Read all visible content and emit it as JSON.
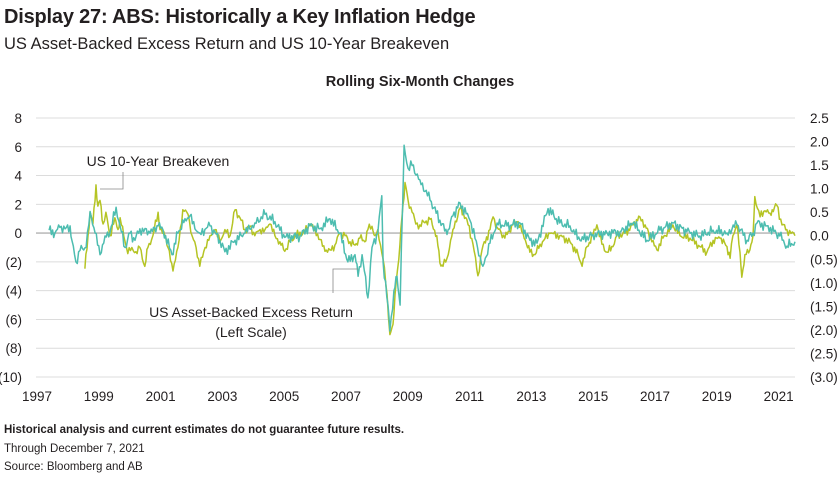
{
  "header": {
    "title": "Display 27: ABS: Historically a Key Inflation Hedge",
    "subtitle": "US Asset-Backed Excess Return and US 10-Year Breakeven"
  },
  "footer": {
    "disclaimer": "Historical analysis and current estimates do not guarantee future results.",
    "through": "Through December 7, 2021",
    "source": "Source: Bloomberg and  AB"
  },
  "chart_data": {
    "type": "line",
    "title": "Rolling Six-Month Changes",
    "xlim": [
      1997,
      2021.9
    ],
    "x_ticks": [
      "1997",
      "1999",
      "2001",
      "2003",
      "2005",
      "2007",
      "2009",
      "2011",
      "2013",
      "2015",
      "2017",
      "2019",
      "2021"
    ],
    "y_left": {
      "ylim": [
        -10,
        8
      ],
      "ticks": [
        "8",
        "6",
        "4",
        "2",
        "0",
        "(2)",
        "(4)",
        "(6)",
        "(8)",
        "(10)"
      ]
    },
    "y_right": {
      "ylim": [
        -3.0,
        2.5
      ],
      "ticks": [
        "2.5",
        "2.0",
        "1.5",
        "1.0",
        "0.5",
        "0.0",
        "(0.5)",
        "(1.0)",
        "(1.5)",
        "(2.0)",
        "(2.5)",
        "(3.0)"
      ]
    },
    "grid": true,
    "annotations": {
      "breakeven": "US 10-Year Breakeven",
      "abs_line1": "US Asset-Backed Excess Return",
      "abs_line2": "(Left Scale)"
    },
    "series": [
      {
        "name": "US Asset-Backed Excess Return",
        "axis": "left",
        "color": "#4dbdb0",
        "x": [
          1997.39,
          1997.58,
          1997.74,
          1997.91,
          1998.07,
          1998.13,
          1998.26,
          1998.39,
          1998.59,
          1998.72,
          1998.88,
          1999.04,
          1999.2,
          1999.36,
          1999.56,
          1999.69,
          1999.85,
          2000.01,
          2000.17,
          2000.33,
          2000.66,
          2000.92,
          2001.08,
          2001.37,
          2001.56,
          2001.79,
          2001.95,
          2002.11,
          2002.27,
          2002.6,
          2002.92,
          2003.08,
          2003.41,
          2003.73,
          2004.05,
          2004.38,
          2004.7,
          2005.02,
          2005.51,
          2005.83,
          2006.16,
          2006.48,
          2006.8,
          2007.06,
          2007.29,
          2007.39,
          2007.52,
          2007.71,
          2007.84,
          2008.03,
          2008.16,
          2008.2,
          2008.36,
          2008.42,
          2008.55,
          2008.65,
          2008.75,
          2008.88,
          2009.01,
          2009.14,
          2009.39,
          2009.72,
          2010.04,
          2010.27,
          2010.46,
          2010.69,
          2011.01,
          2011.34,
          2011.43,
          2011.66,
          2011.89,
          2012.21,
          2012.63,
          2012.95,
          2013.18,
          2013.54,
          2013.92,
          2014.25,
          2014.57,
          2014.99,
          2015.45,
          2015.87,
          2016.29,
          2016.74,
          2017.16,
          2017.58,
          2018.03,
          2018.45,
          2018.88,
          2019.33,
          2019.65,
          2019.98,
          2020.17,
          2020.3,
          2020.62,
          2021.04,
          2021.27,
          2021.53
        ],
        "y": [
          0.2,
          0,
          0.4,
          0.3,
          0.5,
          -0.5,
          -2,
          -1.2,
          -1,
          1.5,
          0,
          -1.5,
          -0.2,
          0,
          1.8,
          0.5,
          -1,
          0,
          -0.5,
          0.3,
          0,
          0.5,
          0.2,
          -1.5,
          0,
          1.0,
          1.2,
          0.3,
          0,
          0.5,
          -0.5,
          -1.3,
          -0.5,
          0,
          0.7,
          1.3,
          0.8,
          -0.3,
          -0.2,
          0.5,
          0.3,
          1.0,
          0,
          -2,
          -1.5,
          -3,
          -1.5,
          -4.5,
          -1,
          0,
          2.6,
          -2,
          -5,
          -6.8,
          -4,
          -3,
          -5,
          6.1,
          4.5,
          4.7,
          3.7,
          2.3,
          0.9,
          -0.1,
          1.2,
          2.1,
          0.9,
          -1.6,
          -2.3,
          -0.7,
          0.7,
          0.5,
          0.7,
          -0.5,
          -0.7,
          1.7,
          0.7,
          0.5,
          -0.5,
          -0.1,
          0,
          0.1,
          0.7,
          -0.5,
          0.2,
          0.7,
          0.1,
          -0.2,
          0.2,
          0,
          0.6,
          -0.5,
          0,
          0.7,
          0.5,
          -0.2,
          -0.9,
          -0.6
        ]
      },
      {
        "name": "US 10-Year Breakeven",
        "axis": "right",
        "color": "#b5c424",
        "x": [
          1998.55,
          1998.65,
          1998.72,
          1998.81,
          1998.91,
          1998.97,
          1999.04,
          1999.14,
          1999.23,
          1999.36,
          1999.52,
          1999.62,
          1999.69,
          1999.85,
          1999.94,
          2000.07,
          2000.24,
          2000.33,
          2000.49,
          2000.59,
          2000.75,
          2000.92,
          2000.98,
          2001.14,
          2001.24,
          2001.4,
          2001.56,
          2001.72,
          2001.89,
          2002.02,
          2002.15,
          2002.27,
          2002.44,
          2002.6,
          2002.76,
          2002.92,
          2003.08,
          2003.25,
          2003.41,
          2003.57,
          2003.73,
          2003.89,
          2004.05,
          2004.22,
          2004.38,
          2004.54,
          2004.7,
          2004.86,
          2005.02,
          2005.19,
          2005.35,
          2005.67,
          2005.83,
          2006.0,
          2006.16,
          2006.32,
          2006.48,
          2006.64,
          2006.8,
          2006.97,
          2007.13,
          2007.29,
          2007.45,
          2007.61,
          2007.71,
          2007.84,
          2007.94,
          2008.03,
          2008.2,
          2008.33,
          2008.42,
          2008.52,
          2008.62,
          2008.71,
          2008.81,
          2008.91,
          2009.01,
          2009.14,
          2009.26,
          2009.39,
          2009.72,
          2009.94,
          2010.04,
          2010.14,
          2010.27,
          2010.46,
          2010.69,
          2010.91,
          2011.11,
          2011.27,
          2011.4,
          2011.66,
          2011.76,
          2011.89,
          2012.14,
          2012.4,
          2012.57,
          2012.73,
          2012.95,
          2013.12,
          2013.28,
          2013.6,
          2013.92,
          2014.25,
          2014.51,
          2014.64,
          2014.8,
          2014.99,
          2015.12,
          2015.28,
          2015.45,
          2015.64,
          2015.77,
          2016.03,
          2016.29,
          2016.51,
          2016.68,
          2016.9,
          2017.06,
          2017.26,
          2017.58,
          2017.81,
          2018.13,
          2018.45,
          2018.68,
          2018.88,
          2019.1,
          2019.33,
          2019.43,
          2019.52,
          2019.65,
          2019.75,
          2019.81,
          2019.91,
          2020.07,
          2020.17,
          2020.23,
          2020.4,
          2020.56,
          2020.72,
          2020.94,
          2021.11,
          2021.27,
          2021.4,
          2021.53
        ],
        "y": [
          -0.7,
          0,
          0.5,
          0.25,
          1.08,
          0.63,
          0.75,
          0.25,
          0.5,
          0,
          0.38,
          0.13,
          0.38,
          -0.13,
          -0.38,
          -0.25,
          -0.38,
          -0.25,
          -0.65,
          -0.25,
          0,
          0.5,
          0.13,
          0,
          -0.25,
          -0.75,
          -0.25,
          0.55,
          0.45,
          0,
          -0.25,
          -0.65,
          -0.25,
          0,
          0.13,
          -0.13,
          0.13,
          0,
          0.55,
          0.38,
          0.13,
          0.2,
          0,
          0.13,
          0.13,
          0.25,
          0,
          -0.13,
          -0.33,
          -0.13,
          0,
          0.08,
          0.25,
          0.13,
          -0.08,
          -0.33,
          -0.3,
          -0.2,
          0.05,
          0,
          -0.13,
          -0.2,
          -0.05,
          -0.13,
          0.13,
          0.2,
          0,
          0.13,
          -0.5,
          -1.25,
          -2.1,
          -1.88,
          -1.0,
          -0.5,
          0.38,
          1.13,
          0.75,
          0.5,
          0.25,
          0.23,
          0.35,
          0,
          -0.58,
          -0.65,
          -0.48,
          0.13,
          0.58,
          0.35,
          -0.18,
          -0.85,
          -0.3,
          0.13,
          0.4,
          0.18,
          -0.05,
          0.23,
          0.3,
          0.05,
          -0.35,
          -0.4,
          -0.18,
          0.05,
          0,
          -0.13,
          -0.4,
          -0.65,
          -0.23,
          0,
          0.23,
          -0.18,
          -0.35,
          -0.23,
          0,
          0.05,
          0.23,
          0.4,
          0.23,
          -0.13,
          -0.3,
          -0.05,
          0.23,
          0,
          -0.05,
          -0.23,
          -0.35,
          -0.1,
          -0.05,
          -0.23,
          -0.48,
          0,
          0.23,
          -0.35,
          -0.88,
          -0.4,
          -0.3,
          0,
          0.83,
          0.4,
          0.53,
          0.48,
          0.65,
          0.23,
          0.13,
          0.05,
          0
        ]
      }
    ]
  }
}
